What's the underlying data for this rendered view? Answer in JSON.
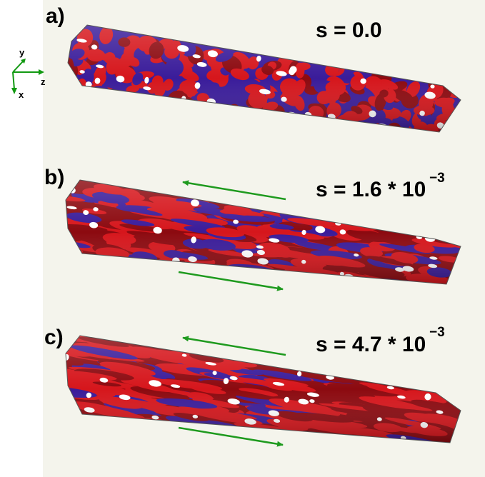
{
  "axes": {
    "y": "y",
    "z": "z",
    "x": "x",
    "color": "#119911"
  },
  "panels": [
    {
      "letter": "a)",
      "s_text": "s = 0.0",
      "s_exponent": ""
    },
    {
      "letter": "b)",
      "s_text": "s = 1.6 * 10",
      "s_exponent": "−3"
    },
    {
      "letter": "c)",
      "s_text": "s = 4.7 * 10",
      "s_exponent": "−3"
    }
  ],
  "colors": {
    "background_panel": "#f4f4ec",
    "red": "#d6161c",
    "dark_red": "#8c0a10",
    "blue": "#3a1c9a",
    "arrow": "#1e9a1e"
  }
}
